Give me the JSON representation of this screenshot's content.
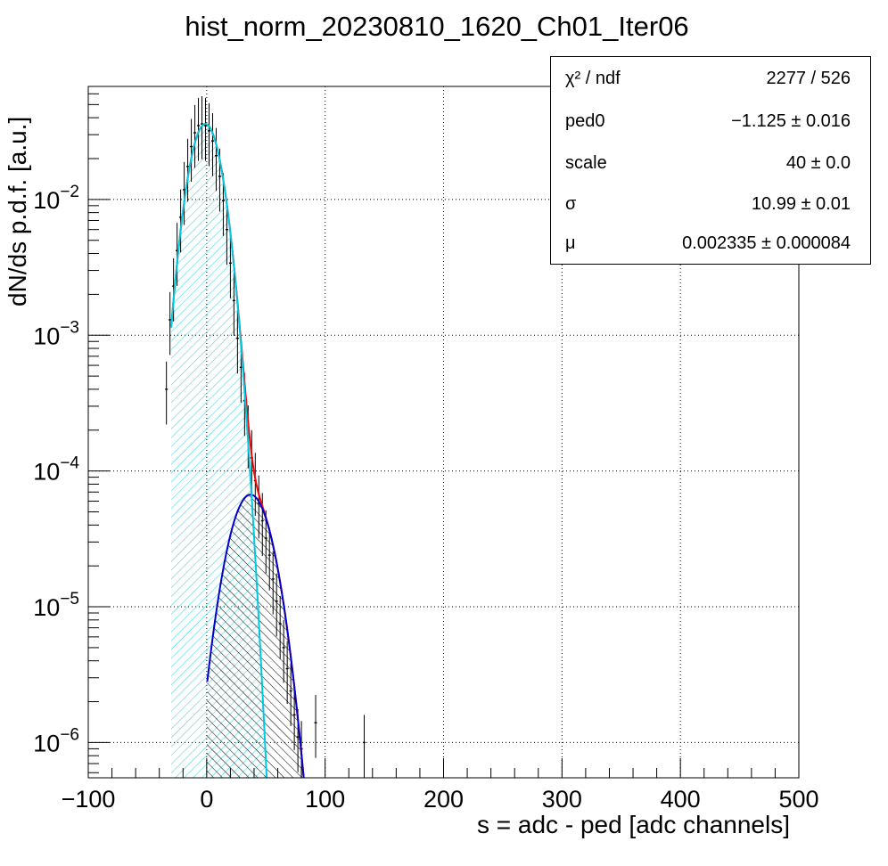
{
  "chart_data": {
    "type": "histogram-with-fits",
    "title": "hist_norm_20230810_1620_Ch01_Iter06",
    "xlabel": "s = adc - ped [adc channels]",
    "ylabel": "dN/ds p.d.f. [a.u.]",
    "xlim": [
      -100,
      500
    ],
    "ylim": [
      5.5e-07,
      0.068
    ],
    "yscale": "log",
    "grid": true,
    "x_ticks": [
      -100,
      0,
      100,
      200,
      300,
      400,
      500
    ],
    "y_ticks": [
      {
        "value": 1e-06,
        "label": "10",
        "exp": "−6"
      },
      {
        "value": 1e-05,
        "label": "10",
        "exp": "−5"
      },
      {
        "value": 0.0001,
        "label": "10",
        "exp": "−4"
      },
      {
        "value": 0.001,
        "label": "10",
        "exp": "−3"
      },
      {
        "value": 0.01,
        "label": "10",
        "exp": "−2"
      }
    ],
    "histogram_points": {
      "x": [
        -34,
        -31,
        -28,
        -25,
        -22,
        -19,
        -16,
        -13,
        -10,
        -7,
        -4,
        -1,
        2,
        5,
        8,
        11,
        14,
        17,
        20,
        23,
        26,
        29,
        32,
        35,
        38,
        41,
        44,
        47,
        50,
        53,
        56,
        59,
        62,
        65,
        68,
        71,
        74,
        77,
        80,
        92,
        133
      ],
      "y": [
        0.0004,
        0.0013,
        0.0023,
        0.0042,
        0.0074,
        0.0118,
        0.0175,
        0.0245,
        0.031,
        0.035,
        0.036,
        0.035,
        0.032,
        0.027,
        0.021,
        0.0148,
        0.0098,
        0.006,
        0.0034,
        0.0018,
        0.00095,
        0.00058,
        0.00033,
        0.00019,
        0.000125,
        8.5e-05,
        5.8e-05,
        4.3e-05,
        3.2e-05,
        2.4e-05,
        1.6e-05,
        1.1e-05,
        7.5e-06,
        5e-06,
        3.5e-06,
        2.4e-06,
        1.6e-06,
        1.1e-06,
        9e-07,
        1.4e-06,
        1e-06
      ]
    },
    "series": [
      {
        "name": "",
        "color": "#ff0000",
        "kind": "total fit",
        "x_range": [
          -30,
          83
        ]
      },
      {
        "name": "",
        "color": "#00c8e0",
        "kind": "pedestal component",
        "x_range": [
          -30,
          52
        ]
      },
      {
        "name": "",
        "color": "#0000cc",
        "kind": "single photo-electron component",
        "x_range": [
          0,
          83
        ]
      }
    ],
    "fit_params": {
      "ped0": -1.125,
      "sigma": 10.99,
      "mu": 0.002335,
      "scale": 40
    }
  },
  "stats": {
    "rows": [
      {
        "name": "χ² / ndf",
        "value": "2277 / 526"
      },
      {
        "name": "ped0",
        "value": "−1.125  ± 0.016"
      },
      {
        "name": "scale",
        "value": "40  ± 0.0"
      },
      {
        "name": "σ",
        "value": "10.99  ± 0.01"
      },
      {
        "name": "μ",
        "value": "0.002335  ± 0.000084"
      }
    ]
  },
  "colors": {
    "total_fit": "#ff0000",
    "pedestal_fit": "#00c8e0",
    "spe_fit": "#0000cc",
    "hatch_ped": "#58d8e8",
    "hatch_spe": "#000000"
  }
}
